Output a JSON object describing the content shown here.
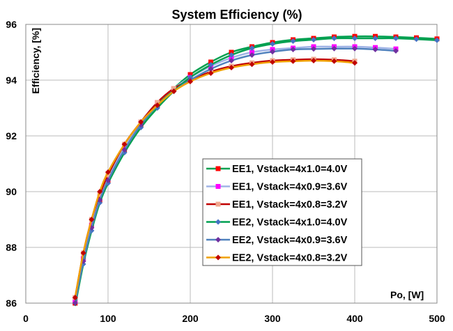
{
  "chart_data": {
    "type": "line",
    "title": "System Efficiency (%)",
    "xlabel": "Po, [W]",
    "ylabel": "Efficiency, [%]",
    "xlim": [
      0,
      500
    ],
    "ylim": [
      86,
      96
    ],
    "xticks": [
      0,
      100,
      200,
      300,
      400,
      500
    ],
    "yticks": [
      86,
      88,
      90,
      92,
      94,
      96
    ],
    "grid": true,
    "legend_position": "center-right",
    "series": [
      {
        "name": "EE1, Vstack=4x1.0=4.0V",
        "line_color": "#00A050",
        "marker_color": "#FF0000",
        "marker": "square",
        "x": [
          60,
          70,
          80,
          90,
          100,
          120,
          140,
          160,
          180,
          200,
          225,
          250,
          275,
          300,
          325,
          350,
          375,
          400,
          425,
          450,
          475,
          500
        ],
        "y": [
          86.0,
          87.6,
          88.8,
          89.7,
          90.4,
          91.5,
          92.4,
          93.1,
          93.7,
          94.2,
          94.65,
          95.0,
          95.2,
          95.35,
          95.45,
          95.5,
          95.55,
          95.57,
          95.57,
          95.55,
          95.52,
          95.48
        ]
      },
      {
        "name": "EE1, Vstack=4x0.9=3.6V",
        "line_color": "#A0B4E6",
        "marker_color": "#FF00FF",
        "marker": "square",
        "x": [
          60,
          70,
          80,
          90,
          100,
          120,
          140,
          160,
          180,
          200,
          225,
          250,
          275,
          300,
          325,
          350,
          375,
          400,
          425,
          450
        ],
        "y": [
          86.1,
          87.6,
          88.8,
          89.8,
          90.5,
          91.6,
          92.5,
          93.2,
          93.7,
          94.1,
          94.5,
          94.8,
          95.0,
          95.1,
          95.15,
          95.2,
          95.2,
          95.2,
          95.17,
          95.12
        ]
      },
      {
        "name": "EE1, Vstack=4x0.8=3.2V",
        "line_color": "#C00000",
        "marker_color": "#F0A890",
        "marker": "square",
        "x": [
          60,
          70,
          80,
          90,
          100,
          120,
          140,
          160,
          180,
          200,
          225,
          250,
          275,
          300,
          325,
          350,
          375,
          400
        ],
        "y": [
          86.2,
          87.8,
          89.0,
          89.9,
          90.6,
          91.7,
          92.5,
          93.2,
          93.7,
          94.0,
          94.3,
          94.5,
          94.62,
          94.7,
          94.73,
          94.75,
          94.73,
          94.68
        ]
      },
      {
        "name": "EE2, Vstack=4x1.0=4.0V",
        "line_color": "#00A050",
        "marker_color": "#4472C4",
        "marker": "diamond",
        "x": [
          60,
          70,
          80,
          90,
          100,
          120,
          140,
          160,
          180,
          200,
          225,
          250,
          275,
          300,
          325,
          350,
          375,
          400,
          425,
          450,
          475,
          500
        ],
        "y": [
          85.9,
          87.4,
          88.6,
          89.6,
          90.3,
          91.4,
          92.3,
          93.0,
          93.6,
          94.1,
          94.55,
          94.9,
          95.15,
          95.3,
          95.4,
          95.45,
          95.5,
          95.5,
          95.5,
          95.5,
          95.47,
          95.43
        ]
      },
      {
        "name": "EE2, Vstack=4x0.9=3.6V",
        "line_color": "#4F81BD",
        "marker_color": "#7030A0",
        "marker": "diamond",
        "x": [
          60,
          70,
          80,
          90,
          100,
          120,
          140,
          160,
          180,
          200,
          225,
          250,
          275,
          300,
          325,
          350,
          375,
          400,
          425,
          450
        ],
        "y": [
          86.0,
          87.5,
          88.7,
          89.7,
          90.4,
          91.5,
          92.4,
          93.1,
          93.6,
          94.0,
          94.4,
          94.7,
          94.9,
          95.02,
          95.1,
          95.12,
          95.13,
          95.13,
          95.1,
          95.05
        ]
      },
      {
        "name": "EE2, Vstack=4x0.8=3.2V",
        "line_color": "#F0A000",
        "marker_color": "#C00000",
        "marker": "diamond",
        "x": [
          60,
          70,
          80,
          90,
          100,
          120,
          140,
          160,
          180,
          200,
          225,
          250,
          275,
          300,
          325,
          350,
          375,
          400
        ],
        "y": [
          86.2,
          87.8,
          89.0,
          90.0,
          90.7,
          91.7,
          92.5,
          93.1,
          93.6,
          93.95,
          94.25,
          94.45,
          94.57,
          94.65,
          94.68,
          94.7,
          94.68,
          94.62
        ]
      }
    ]
  }
}
